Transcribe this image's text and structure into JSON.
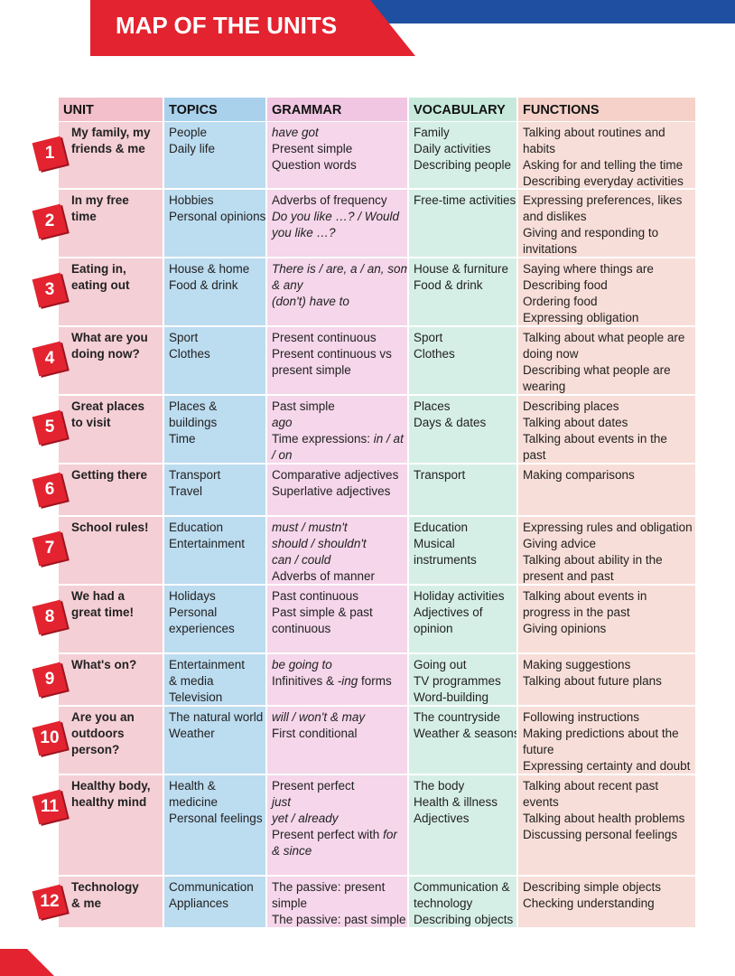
{
  "header": {
    "title": "MAP OF THE UNITS"
  },
  "table": {
    "columns": [
      "UNIT",
      "TOPICS",
      "GRAMMAR",
      "VOCABULARY",
      "FUNCTIONS"
    ],
    "units": [
      {
        "number": "1",
        "title": [
          "My family, my",
          "friends & me"
        ],
        "topics": [
          "People",
          "Daily life"
        ],
        "grammar": [
          {
            "italic": "have got"
          },
          "Present simple",
          "Question words"
        ],
        "vocabulary": [
          "Family",
          "Daily activities",
          "Describing people"
        ],
        "functions": [
          "Talking about routines and",
          "habits",
          "Asking for and telling the time",
          "Describing everyday activities"
        ]
      },
      {
        "number": "2",
        "title": [
          "In my free",
          "time"
        ],
        "topics": [
          "Hobbies",
          "Personal opinions"
        ],
        "grammar": [
          "Adverbs of frequency",
          {
            "italic": "Do you like …? / Would"
          },
          {
            "italic": "you like …?"
          }
        ],
        "vocabulary": [
          "Free-time activities"
        ],
        "functions": [
          "Expressing preferences, likes",
          "and dislikes",
          "Giving and responding to",
          "invitations"
        ]
      },
      {
        "number": "3",
        "title": [
          "Eating in,",
          "eating out"
        ],
        "topics": [
          "House & home",
          "Food & drink"
        ],
        "grammar": [
          {
            "italic": "There is / are, a / an, some"
          },
          {
            "italic": "& any"
          },
          {
            "italic": "(don't) have to"
          }
        ],
        "vocabulary": [
          "House & furniture",
          "Food & drink"
        ],
        "functions": [
          "Saying where things are",
          "Describing food",
          "Ordering food",
          "Expressing obligation"
        ]
      },
      {
        "number": "4",
        "title": [
          "What are you",
          "doing now?"
        ],
        "topics": [
          "Sport",
          "Clothes"
        ],
        "grammar": [
          "Present continuous",
          "Present continuous vs",
          "present simple"
        ],
        "vocabulary": [
          "Sport",
          "Clothes"
        ],
        "functions": [
          "Talking about what people are",
          "doing now",
          "Describing what people are",
          "wearing"
        ]
      },
      {
        "number": "5",
        "title": [
          "Great places",
          "to visit"
        ],
        "topics": [
          "Places &",
          "buildings",
          "Time"
        ],
        "grammar": [
          "Past simple",
          {
            "italic": "ago"
          },
          [
            "Time expressions: ",
            {
              "italic": "in / at"
            }
          ],
          {
            "italic": "/ on"
          }
        ],
        "vocabulary": [
          "Places",
          "Days & dates"
        ],
        "functions": [
          "Describing places",
          "Talking about dates",
          "Talking about events in the",
          "past"
        ]
      },
      {
        "number": "6",
        "title": [
          "Getting there"
        ],
        "topics": [
          "Transport",
          "Travel"
        ],
        "grammar": [
          "Comparative adjectives",
          "Superlative adjectives"
        ],
        "vocabulary": [
          "Transport"
        ],
        "functions": [
          "Making comparisons"
        ]
      },
      {
        "number": "7",
        "title": [
          "School rules!"
        ],
        "topics": [
          "Education",
          "Entertainment"
        ],
        "grammar": [
          {
            "italic": "must / mustn't"
          },
          {
            "italic": "should / shouldn't"
          },
          {
            "italic": "can / could"
          },
          "Adverbs of manner"
        ],
        "vocabulary": [
          "Education",
          "Musical",
          "instruments"
        ],
        "functions": [
          "Expressing rules and obligation",
          "Giving advice",
          "Talking about ability in the",
          "present and past"
        ]
      },
      {
        "number": "8",
        "title": [
          "We had a",
          "great time!"
        ],
        "topics": [
          "Holidays",
          "Personal",
          "experiences"
        ],
        "grammar": [
          "Past continuous",
          "Past simple & past",
          "continuous"
        ],
        "vocabulary": [
          "Holiday activities",
          "Adjectives of",
          "opinion"
        ],
        "functions": [
          "Talking about events in",
          "progress in the past",
          "Giving opinions"
        ]
      },
      {
        "number": "9",
        "title": [
          "What's on?"
        ],
        "topics": [
          "Entertainment",
          "& media",
          "Television"
        ],
        "grammar": [
          {
            "italic": "be going to"
          },
          [
            "Infinitives & ",
            {
              "italic": "-ing"
            },
            " forms"
          ]
        ],
        "vocabulary": [
          "Going out",
          "TV programmes",
          "Word-building"
        ],
        "functions": [
          "Making suggestions",
          "Talking about future plans"
        ]
      },
      {
        "number": "10",
        "title": [
          "Are you an",
          "outdoors",
          "person?"
        ],
        "topics": [
          "The natural world",
          "Weather"
        ],
        "grammar": [
          {
            "italic": "will / won't & may"
          },
          "First conditional"
        ],
        "vocabulary": [
          "The countryside",
          "Weather & seasons"
        ],
        "functions": [
          "Following instructions",
          "Making predictions about the",
          "future",
          "Expressing certainty and doubt"
        ]
      },
      {
        "number": "11",
        "title": [
          "Healthy body,",
          "healthy mind"
        ],
        "topics": [
          "Health &",
          "medicine",
          "Personal feelings"
        ],
        "grammar": [
          "Present perfect",
          {
            "italic": "just"
          },
          {
            "italic": "yet / already"
          },
          [
            "Present perfect with ",
            {
              "italic": "for"
            }
          ],
          {
            "italic": "& since"
          }
        ],
        "vocabulary": [
          "The body",
          "Health & illness",
          "Adjectives"
        ],
        "functions": [
          "Talking about recent past",
          "events",
          "Talking about health problems",
          "Discussing personal feelings"
        ]
      },
      {
        "number": "12",
        "title": [
          "Technology",
          "& me"
        ],
        "topics": [
          "Communication",
          "Appliances"
        ],
        "grammar": [
          "The passive: present",
          "simple",
          "The passive: past simple"
        ],
        "vocabulary": [
          "Communication &",
          "technology",
          "Describing objects"
        ],
        "functions": [
          "Describing simple objects",
          "Checking understanding"
        ]
      }
    ]
  }
}
